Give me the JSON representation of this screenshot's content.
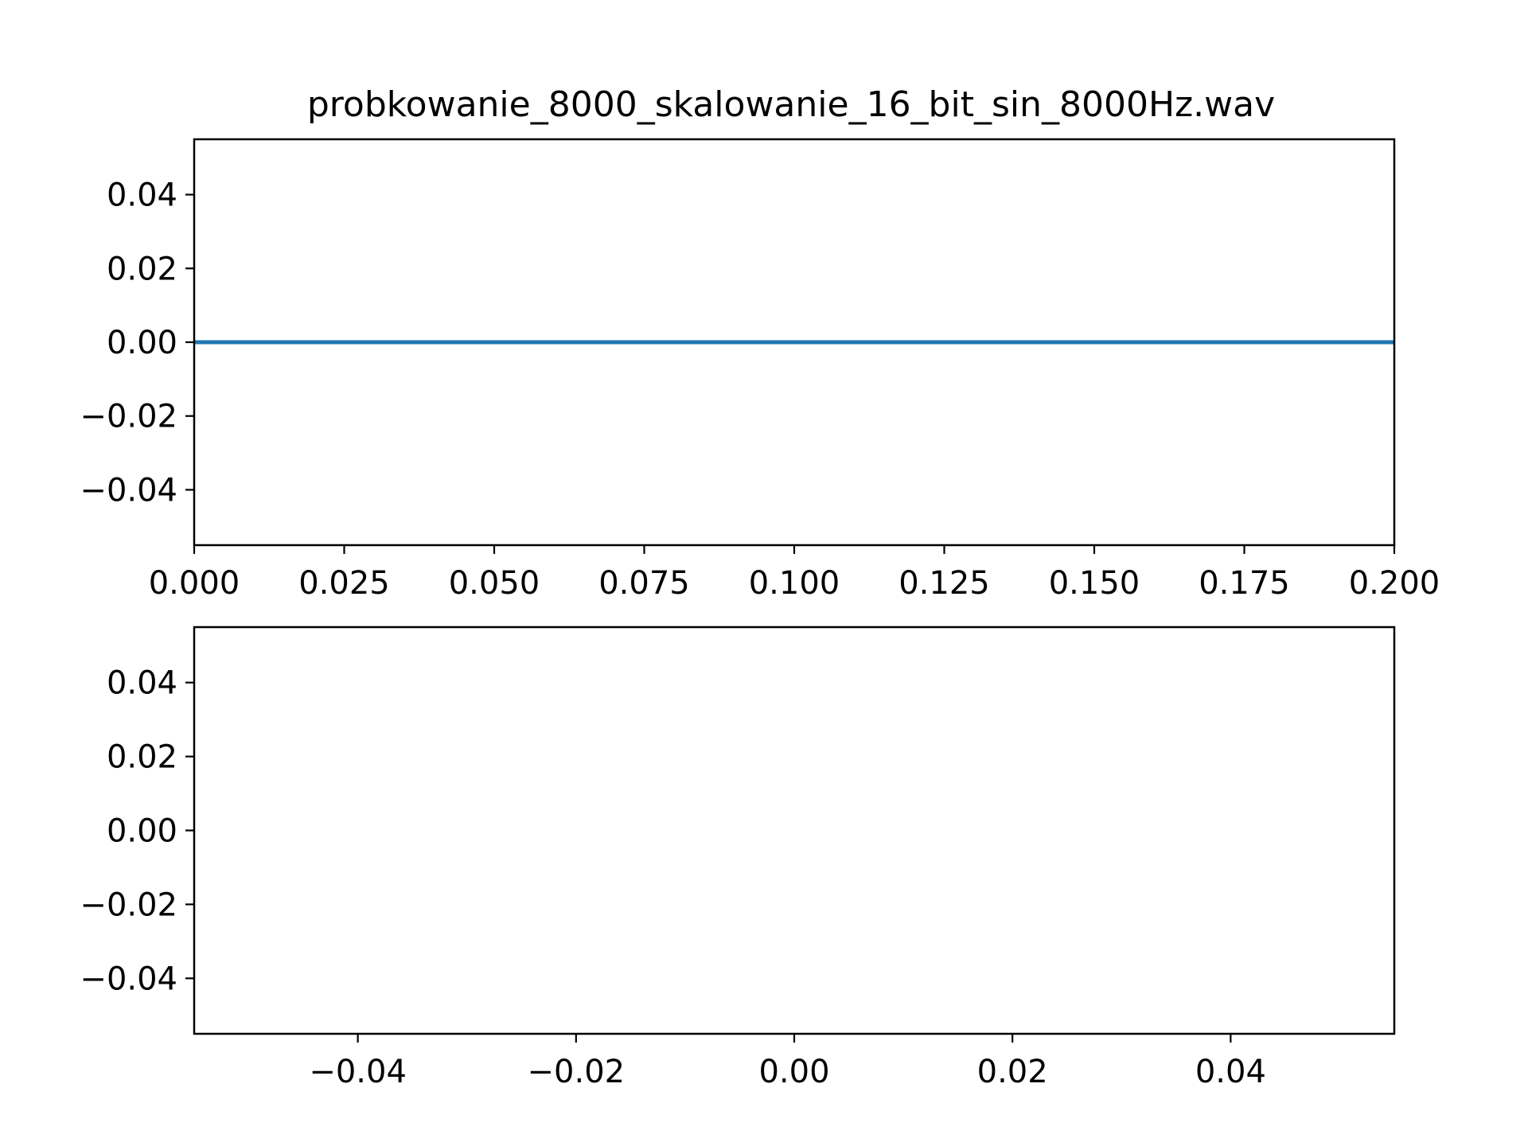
{
  "figure": {
    "title": "probkowanie_8000_skalowanie_16_bit_sin_8000Hz.wav"
  },
  "chart_data": [
    {
      "type": "line",
      "title": "probkowanie_8000_skalowanie_16_bit_sin_8000Hz.wav",
      "xlabel": "",
      "ylabel": "",
      "xlim": [
        0.0,
        0.2
      ],
      "ylim": [
        -0.055,
        0.055
      ],
      "xticks": [
        0.0,
        0.025,
        0.05,
        0.075,
        0.1,
        0.125,
        0.15,
        0.175,
        0.2
      ],
      "xtick_labels": [
        "0.000",
        "0.025",
        "0.050",
        "0.075",
        "0.100",
        "0.125",
        "0.150",
        "0.175",
        "0.200"
      ],
      "yticks": [
        0.04,
        0.02,
        0.0,
        -0.02,
        -0.04
      ],
      "ytick_labels": [
        "0.04",
        "0.02",
        "0.00",
        "−0.02",
        "−0.04"
      ],
      "grid": false,
      "series": [
        {
          "color": "#1f77b4",
          "x": [
            0.0,
            0.2
          ],
          "y": [
            0.0,
            0.0
          ]
        }
      ]
    },
    {
      "type": "line",
      "title": "",
      "xlabel": "",
      "ylabel": "",
      "xlim": [
        -0.055,
        0.055
      ],
      "ylim": [
        -0.055,
        0.055
      ],
      "xticks": [
        -0.04,
        -0.02,
        0.0,
        0.02,
        0.04
      ],
      "xtick_labels": [
        "−0.04",
        "−0.02",
        "0.00",
        "0.02",
        "0.04"
      ],
      "yticks": [
        0.04,
        0.02,
        0.0,
        -0.02,
        -0.04
      ],
      "ytick_labels": [
        "0.04",
        "0.02",
        "0.00",
        "−0.02",
        "−0.04"
      ],
      "grid": false,
      "series": []
    }
  ]
}
